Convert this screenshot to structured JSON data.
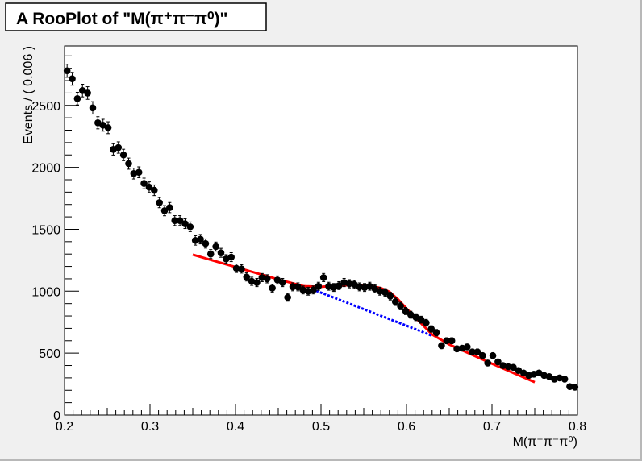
{
  "chart_data": {
    "type": "scatter",
    "title": "A RooPlot of \"M(π⁺π⁻π⁰)\"",
    "xlabel": "M(π⁺π⁻π⁰)",
    "ylabel": "Events / ( 0.006 )",
    "xlim": [
      0.2,
      0.8
    ],
    "ylim": [
      0,
      2980
    ],
    "x_ticks": [
      0.2,
      0.3,
      0.4,
      0.5,
      0.6,
      0.7,
      0.8
    ],
    "x_tick_labels": [
      "0.2",
      "0.3",
      "0.4",
      "0.5",
      "0.6",
      "0.7",
      "0.8"
    ],
    "y_ticks": [
      0,
      500,
      1000,
      1500,
      2000,
      2500
    ],
    "y_tick_labels": [
      "0",
      "500",
      "1000",
      "1500",
      "2000",
      "2500"
    ],
    "grid": false,
    "colors": {
      "data": "#000000",
      "total_fit": "#ff0000",
      "background": "#0000ff"
    },
    "series": [
      {
        "type": "scatter_errorbars",
        "x": [
          0.203,
          0.209,
          0.215,
          0.221,
          0.227,
          0.233,
          0.239,
          0.245,
          0.251,
          0.257,
          0.263,
          0.269,
          0.275,
          0.281,
          0.287,
          0.293,
          0.299,
          0.305,
          0.311,
          0.317,
          0.323,
          0.329,
          0.335,
          0.341,
          0.347,
          0.353,
          0.359,
          0.365,
          0.371,
          0.377,
          0.383,
          0.389,
          0.395,
          0.401,
          0.407,
          0.413,
          0.419,
          0.425,
          0.431,
          0.437,
          0.443,
          0.449,
          0.455,
          0.461,
          0.467,
          0.473,
          0.479,
          0.485,
          0.491,
          0.497,
          0.503,
          0.509,
          0.515,
          0.521,
          0.527,
          0.533,
          0.539,
          0.545,
          0.551,
          0.557,
          0.563,
          0.569,
          0.575,
          0.581,
          0.587,
          0.593,
          0.599,
          0.605,
          0.611,
          0.617,
          0.623,
          0.629,
          0.635,
          0.641,
          0.647,
          0.653,
          0.659,
          0.665,
          0.671,
          0.677,
          0.683,
          0.689,
          0.695,
          0.701,
          0.707,
          0.713,
          0.719,
          0.725,
          0.731,
          0.737,
          0.743,
          0.749,
          0.755,
          0.761,
          0.767,
          0.773,
          0.779,
          0.785,
          0.791,
          0.797
        ],
        "y": [
          2780,
          2715,
          2555,
          2620,
          2600,
          2480,
          2360,
          2340,
          2320,
          2145,
          2160,
          2100,
          2030,
          1950,
          1960,
          1870,
          1840,
          1815,
          1715,
          1650,
          1675,
          1570,
          1570,
          1545,
          1520,
          1410,
          1420,
          1385,
          1300,
          1360,
          1310,
          1260,
          1275,
          1185,
          1180,
          1115,
          1080,
          1070,
          1110,
          1100,
          1025,
          1090,
          1070,
          950,
          1035,
          1035,
          1010,
          1000,
          1010,
          1040,
          1110,
          1040,
          1030,
          1045,
          1070,
          1060,
          1055,
          1035,
          1030,
          1040,
          1020,
          1000,
          990,
          960,
          915,
          880,
          840,
          810,
          790,
          770,
          745,
          695,
          665,
          560,
          600,
          600,
          535,
          540,
          550,
          510,
          510,
          480,
          420,
          480,
          430,
          400,
          390,
          385,
          360,
          340,
          320,
          330,
          340,
          320,
          310,
          290,
          300,
          290,
          230,
          225
        ],
        "yerr": [
          53,
          52,
          51,
          51,
          51,
          50,
          49,
          48,
          48,
          46,
          46,
          46,
          45,
          44,
          44,
          43,
          43,
          43,
          41,
          41,
          41,
          40,
          40,
          39,
          39,
          38,
          38,
          37,
          36,
          37,
          36,
          35,
          36,
          34,
          34,
          33,
          33,
          33,
          33,
          33,
          32,
          33,
          33,
          31,
          32,
          32,
          32,
          32,
          32,
          32,
          33,
          32,
          32,
          32,
          33,
          33,
          32,
          32,
          32,
          32,
          32,
          32,
          31,
          31,
          30,
          30,
          29,
          28,
          28,
          28,
          27,
          26,
          26,
          24,
          24,
          24,
          23,
          23,
          23,
          23,
          23,
          22,
          20,
          22,
          21,
          20,
          20,
          20,
          19,
          18,
          18,
          18,
          18,
          18,
          18,
          17,
          17,
          17,
          15,
          15
        ]
      },
      {
        "type": "line",
        "color": "#ff0000",
        "style": "solid",
        "x": [
          0.35,
          0.4,
          0.45,
          0.48,
          0.5,
          0.52,
          0.54,
          0.56,
          0.57,
          0.58,
          0.59,
          0.6,
          0.61,
          0.62,
          0.63,
          0.65,
          0.7,
          0.75
        ],
        "y": [
          1295,
          1195,
          1095,
          1040,
          1035,
          1045,
          1050,
          1040,
          1025,
          995,
          935,
          860,
          790,
          720,
          650,
          570,
          415,
          265
        ]
      },
      {
        "type": "line",
        "color": "#0000ff",
        "style": "dashed",
        "x": [
          0.49,
          0.52,
          0.55,
          0.58,
          0.61,
          0.63
        ],
        "y": [
          1015,
          935,
          855,
          775,
          695,
          640
        ]
      }
    ]
  }
}
